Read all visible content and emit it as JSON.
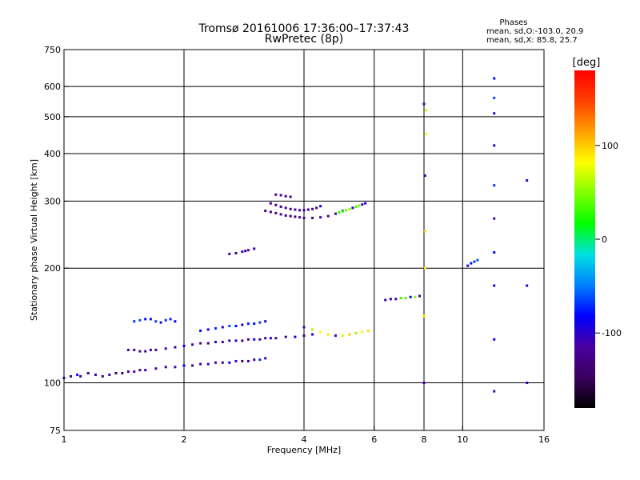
{
  "chart_data": {
    "type": "scatter",
    "title": "Tromsø 20161006 17:36:00–17:37:43",
    "subtitle": "RwPretec (8p)",
    "xlabel": "Frequency [MHz]",
    "ylabel": "Stationary phase Virtual Height [km]",
    "x_scale": "log",
    "y_scale": "log",
    "xlim": [
      1,
      16
    ],
    "ylim": [
      75,
      750
    ],
    "x_ticks": [
      1,
      2,
      4,
      6,
      8,
      10,
      16
    ],
    "x_tick_labels": [
      "1",
      "2",
      "4",
      "6",
      "8",
      "10",
      "16"
    ],
    "y_ticks": [
      75,
      100,
      200,
      300,
      400,
      500,
      600,
      750
    ],
    "y_tick_labels": [
      "75",
      "100",
      "200",
      "300",
      "400",
      "500",
      "600",
      "750"
    ],
    "grid_x": [
      2,
      4,
      6,
      8,
      10
    ],
    "grid_y": [
      100,
      200,
      300,
      400,
      500,
      600
    ],
    "grid": true,
    "colorbar": {
      "label": "[deg]",
      "min": -180,
      "max": 180,
      "ticks": [
        100,
        0,
        -100
      ],
      "tick_labels": [
        "100",
        "0",
        "-100"
      ],
      "colors": [
        "#000000",
        "#3a0060",
        "#4a00a0",
        "#0000ff",
        "#0080ff",
        "#00e0e0",
        "#00ff00",
        "#80ff00",
        "#ffff00",
        "#ffa000",
        "#ff4000",
        "#ff0000"
      ]
    },
    "phase_stats": {
      "header": "Phases",
      "line1": "mean, sd,O:-103.0, 20.9",
      "line2": "mean, sd,X:  85.8, 25.7"
    },
    "series": [
      {
        "x": [
          1.0,
          1.04,
          1.08,
          1.1,
          1.15,
          1.2,
          1.25,
          1.3,
          1.35,
          1.4,
          1.45,
          1.5,
          1.55,
          1.6,
          1.7,
          1.8,
          1.9,
          2.0,
          2.1,
          2.2,
          2.3,
          2.4,
          2.5,
          2.6,
          2.7,
          2.8,
          2.9,
          3.0,
          3.1,
          3.2
        ],
        "y": [
          103,
          104,
          105,
          104,
          106,
          105,
          104,
          105,
          106,
          106,
          107,
          107,
          108,
          108,
          109,
          110,
          110,
          111,
          111,
          112,
          112,
          113,
          113,
          113,
          114,
          114,
          114,
          115,
          115,
          116
        ],
        "phase": [
          -115,
          -100,
          -90,
          -120,
          -130,
          -110,
          -125,
          -120,
          -140,
          -135,
          -120,
          -110,
          -130,
          -100,
          -120,
          -130,
          -110,
          -90,
          -125,
          -115,
          -100,
          -130,
          -120,
          -80,
          -110,
          -140,
          -100,
          -120,
          -70,
          -110
        ]
      },
      {
        "x": [
          1.45,
          1.5,
          1.55,
          1.6,
          1.65,
          1.7,
          1.8,
          1.9,
          2.0,
          2.1,
          2.2,
          2.3,
          2.4,
          2.5,
          2.6,
          2.7,
          2.8,
          2.9,
          3.0,
          3.1,
          3.2,
          3.3,
          3.4,
          3.6,
          3.8,
          4.0,
          4.2
        ],
        "y": [
          122,
          122,
          121,
          121,
          122,
          122,
          123,
          124,
          125,
          126,
          127,
          127,
          128,
          128,
          129,
          129,
          129,
          130,
          130,
          130,
          131,
          131,
          131,
          132,
          132,
          133,
          134
        ],
        "phase": [
          -120,
          -130,
          -110,
          -125,
          -100,
          -130,
          -115,
          -120,
          -90,
          -110,
          -125,
          -130,
          -100,
          -120,
          -110,
          -95,
          -130,
          -120,
          -80,
          -115,
          -120,
          -100,
          -110,
          -130,
          -90,
          -120,
          -100
        ]
      },
      {
        "x": [
          1.5,
          1.55,
          1.6,
          1.65,
          1.7,
          1.75,
          1.8,
          1.85,
          1.9
        ],
        "y": [
          145,
          146,
          147,
          147,
          145,
          144,
          146,
          147,
          145
        ],
        "phase": [
          -70,
          -60,
          -80,
          -90,
          -65,
          -100,
          -70,
          -75,
          -85
        ]
      },
      {
        "x": [
          2.2,
          2.3,
          2.4,
          2.5,
          2.6,
          2.7,
          2.8,
          2.9,
          3.0,
          3.1,
          3.2
        ],
        "y": [
          137,
          138,
          139,
          140,
          141,
          141,
          142,
          143,
          143,
          144,
          145
        ],
        "phase": [
          -80,
          -90,
          -70,
          -100,
          -60,
          -85,
          -95,
          -75,
          -80,
          -65,
          -90
        ]
      },
      {
        "x": [
          2.6,
          2.7,
          2.8,
          2.85,
          2.9,
          3.0
        ],
        "y": [
          218,
          219,
          221,
          222,
          223,
          225
        ],
        "phase": [
          -110,
          -120,
          -100,
          -130,
          -115,
          -105
        ]
      },
      {
        "x": [
          3.2,
          3.3,
          3.4,
          3.5,
          3.6,
          3.7,
          3.8,
          3.9,
          4.0,
          4.2,
          4.4,
          4.6,
          4.8,
          5.0
        ],
        "y": [
          283,
          281,
          279,
          277,
          275,
          274,
          273,
          272,
          271,
          271,
          272,
          274,
          278,
          283
        ],
        "phase": [
          -130,
          -140,
          -120,
          -135,
          -125,
          -140,
          -130,
          -120,
          -135,
          -125,
          -110,
          -130,
          -120,
          -100
        ]
      },
      {
        "x": [
          3.3,
          3.4,
          3.5,
          3.6,
          3.7,
          3.8,
          3.9,
          4.0,
          4.1,
          4.2,
          4.3,
          4.4
        ],
        "y": [
          296,
          293,
          290,
          288,
          286,
          285,
          284,
          284,
          285,
          286,
          288,
          291
        ],
        "phase": [
          -120,
          -110,
          -130,
          -115,
          -125,
          -110,
          -120,
          -130,
          -105,
          -115,
          -125,
          -100
        ]
      },
      {
        "x": [
          3.4,
          3.5,
          3.6,
          3.7
        ],
        "y": [
          312,
          311,
          309,
          308
        ],
        "phase": [
          -125,
          -115,
          -130,
          -120
        ]
      },
      {
        "x": [
          4.0,
          4.2,
          4.4,
          4.6,
          4.8,
          5.0,
          5.2,
          5.4,
          5.6,
          5.8
        ],
        "y": [
          140,
          138,
          136,
          134,
          133,
          133,
          134,
          135,
          136,
          137
        ],
        "phase": [
          -100,
          60,
          80,
          90,
          -110,
          70,
          100,
          60,
          85,
          95
        ]
      },
      {
        "x": [
          4.9,
          5.0,
          5.1,
          5.2,
          5.3,
          5.4,
          5.5,
          5.6,
          5.7
        ],
        "y": [
          280,
          282,
          284,
          286,
          288,
          290,
          292,
          294,
          296
        ],
        "phase": [
          20,
          30,
          40,
          50,
          -100,
          35,
          45,
          -110,
          -90
        ]
      },
      {
        "x": [
          6.4,
          6.6,
          6.8,
          7.0,
          7.2,
          7.4,
          7.6,
          7.8
        ],
        "y": [
          165,
          166,
          166,
          167,
          167,
          168,
          168,
          169
        ],
        "phase": [
          -110,
          -100,
          -120,
          30,
          40,
          -90,
          50,
          -105
        ]
      },
      {
        "x": [
          8.0,
          8.0,
          8.05,
          8.05,
          8.1,
          8.1,
          8.0,
          8.05
        ],
        "y": [
          100,
          150,
          250,
          350,
          450,
          520,
          540,
          200
        ],
        "phase": [
          -110,
          90,
          100,
          -100,
          80,
          70,
          -120,
          95
        ]
      },
      {
        "x": [
          10.3,
          10.5,
          10.7,
          10.9
        ],
        "y": [
          203,
          206,
          208,
          210
        ],
        "phase": [
          -90,
          -80,
          -70,
          -60
        ]
      },
      {
        "x": [
          12.0,
          12.0,
          12.0,
          12.0,
          12.0,
          12.0,
          12.0,
          12.0,
          12.0,
          12.0
        ],
        "y": [
          95,
          130,
          180,
          220,
          270,
          330,
          420,
          510,
          560,
          630
        ],
        "phase": [
          -110,
          -90,
          -100,
          -80,
          -120,
          -70,
          -90,
          -100,
          -60,
          -80
        ]
      },
      {
        "x": [
          14.5,
          14.5,
          14.5
        ],
        "y": [
          100,
          180,
          340
        ],
        "phase": [
          -110,
          -90,
          -100
        ]
      }
    ]
  }
}
